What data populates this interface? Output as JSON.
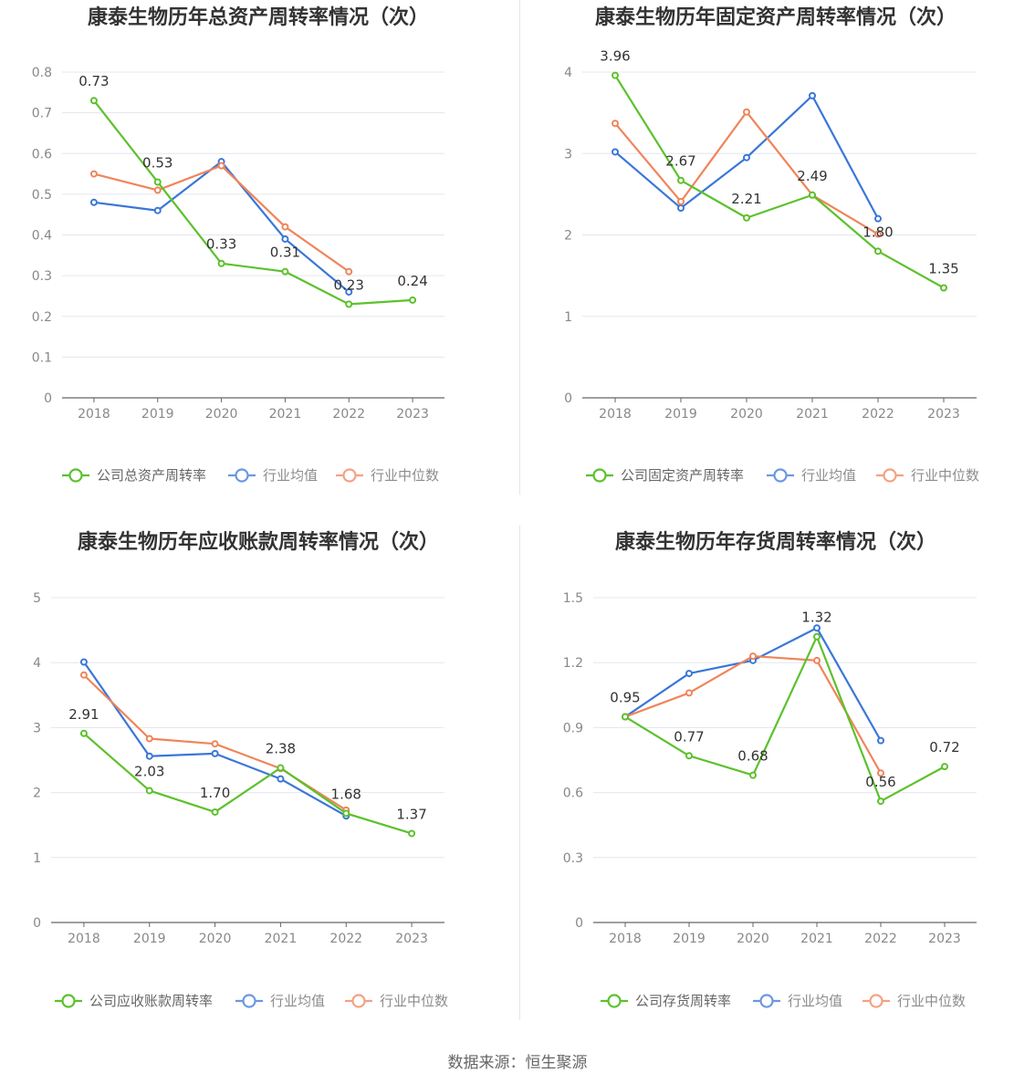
{
  "colors": {
    "company": "#5cc12c",
    "avg": "#3a76d8",
    "median": "#f0845a",
    "grid": "#e4e6ef",
    "axis": "#666666"
  },
  "source_text": "数据来源：恒生聚源",
  "chart_data": [
    {
      "type": "line",
      "title": "康泰生物历年总资产周转率情况（次）",
      "categories": [
        "2018",
        "2019",
        "2020",
        "2021",
        "2022",
        "2023"
      ],
      "ylim": [
        0,
        0.8
      ],
      "yticks": [
        "0",
        "0.1",
        "0.2",
        "0.3",
        "0.4",
        "0.5",
        "0.6",
        "0.7",
        "0.8"
      ],
      "series": [
        {
          "name": "公司总资产周转率",
          "role": "company",
          "values": [
            0.73,
            0.53,
            0.33,
            0.31,
            0.23,
            0.24
          ],
          "labels": [
            "0.73",
            "0.53",
            "0.33",
            "0.31",
            "0.23",
            "0.24"
          ]
        },
        {
          "name": "行业均值",
          "role": "avg",
          "values": [
            0.48,
            0.46,
            0.58,
            0.39,
            0.26,
            null
          ]
        },
        {
          "name": "行业中位数",
          "role": "median",
          "values": [
            0.55,
            0.51,
            0.57,
            0.42,
            0.31,
            null
          ]
        }
      ]
    },
    {
      "type": "line",
      "title": "康泰生物历年固定资产周转率情况（次）",
      "categories": [
        "2018",
        "2019",
        "2020",
        "2021",
        "2022",
        "2023"
      ],
      "ylim": [
        0,
        4
      ],
      "yticks": [
        "0",
        "1",
        "2",
        "3",
        "4"
      ],
      "series": [
        {
          "name": "公司固定资产周转率",
          "role": "company",
          "values": [
            3.96,
            2.67,
            2.21,
            2.49,
            1.8,
            1.35
          ],
          "labels": [
            "3.96",
            "2.67",
            "2.21",
            "2.49",
            "1.80",
            "1.35"
          ]
        },
        {
          "name": "行业均值",
          "role": "avg",
          "values": [
            3.02,
            2.33,
            2.95,
            3.71,
            2.2,
            null
          ]
        },
        {
          "name": "行业中位数",
          "role": "median",
          "values": [
            3.37,
            2.41,
            3.51,
            2.49,
            2.01,
            null
          ]
        }
      ]
    },
    {
      "type": "line",
      "title": "康泰生物历年应收账款周转率情况（次）",
      "categories": [
        "2018",
        "2019",
        "2020",
        "2021",
        "2022",
        "2023"
      ],
      "ylim": [
        0,
        5
      ],
      "yticks": [
        "0",
        "1",
        "2",
        "3",
        "4",
        "5"
      ],
      "series": [
        {
          "name": "公司应收账款周转率",
          "role": "company",
          "values": [
            2.91,
            2.03,
            1.7,
            2.38,
            1.68,
            1.37
          ],
          "labels": [
            "2.91",
            "2.03",
            "1.70",
            "2.38",
            "1.68",
            "1.37"
          ]
        },
        {
          "name": "行业均值",
          "role": "avg",
          "values": [
            4.01,
            2.56,
            2.6,
            2.21,
            1.64,
            null
          ]
        },
        {
          "name": "行业中位数",
          "role": "median",
          "values": [
            3.81,
            2.83,
            2.75,
            2.37,
            1.73,
            null
          ]
        }
      ]
    },
    {
      "type": "line",
      "title": "康泰生物历年存货周转率情况（次）",
      "categories": [
        "2018",
        "2019",
        "2020",
        "2021",
        "2022",
        "2023"
      ],
      "ylim": [
        0,
        1.5
      ],
      "yticks": [
        "0",
        "0.3",
        "0.6",
        "0.9",
        "1.2",
        "1.5"
      ],
      "series": [
        {
          "name": "公司存货周转率",
          "role": "company",
          "values": [
            0.95,
            0.77,
            0.68,
            1.32,
            0.56,
            0.72
          ],
          "labels": [
            "0.95",
            "0.77",
            "0.68",
            "1.32",
            "0.56",
            "0.72"
          ]
        },
        {
          "name": "行业均值",
          "role": "avg",
          "values": [
            0.95,
            1.15,
            1.21,
            1.36,
            0.84,
            null
          ]
        },
        {
          "name": "行业中位数",
          "role": "median",
          "values": [
            0.95,
            1.06,
            1.23,
            1.21,
            0.69,
            null
          ]
        }
      ]
    }
  ]
}
